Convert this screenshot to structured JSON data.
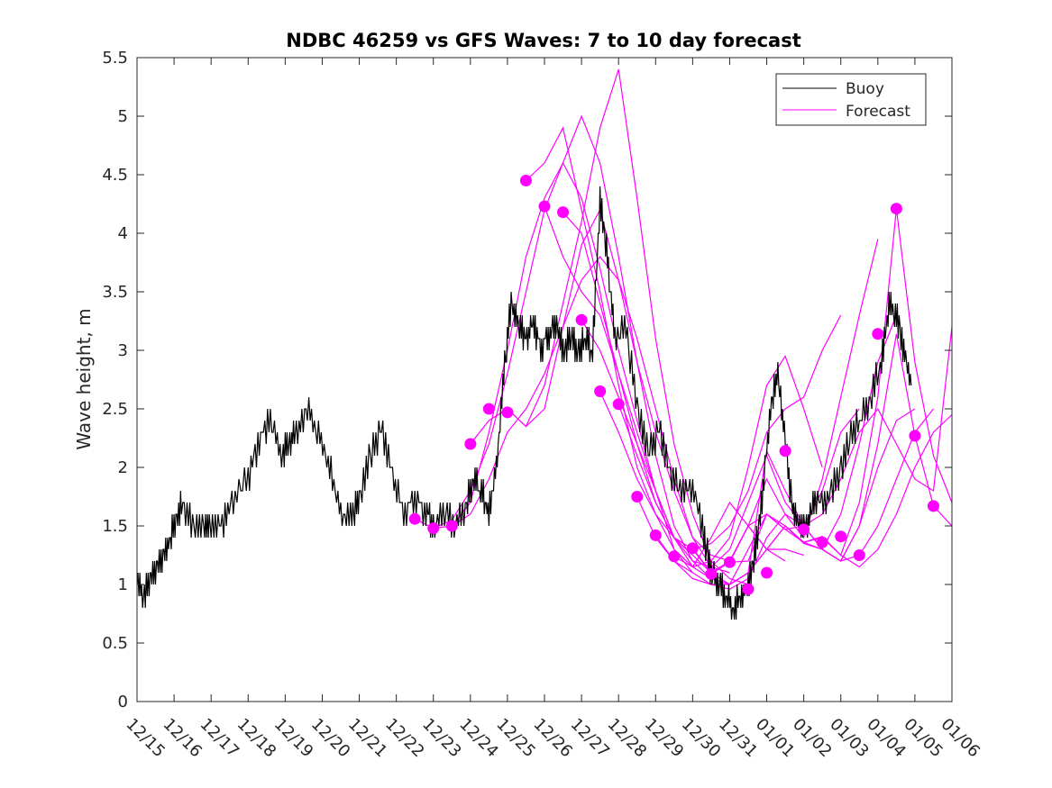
{
  "chart_data": {
    "type": "line",
    "title": "NDBC 46259 vs GFS Waves: 7 to 10 day forecast",
    "xlabel": "",
    "ylabel": "Wave height, m",
    "x_start": "12/15",
    "x_tick_labels": [
      "12/15",
      "12/16",
      "12/17",
      "12/18",
      "12/19",
      "12/20",
      "12/21",
      "12/22",
      "12/23",
      "12/24",
      "12/25",
      "12/26",
      "12/27",
      "12/28",
      "12/29",
      "12/30",
      "12/31",
      "01/01",
      "01/02",
      "01/03",
      "01/04",
      "01/05",
      "01/06"
    ],
    "x_unit": "days since 12/15",
    "xlim": [
      0,
      22
    ],
    "ylim": [
      0,
      5.5
    ],
    "y_ticks": [
      0,
      0.5,
      1,
      1.5,
      2,
      2.5,
      3,
      3.5,
      4,
      4.5,
      5,
      5.5
    ],
    "y_tick_labels": [
      "0",
      "0.5",
      "1",
      "1.5",
      "2",
      "2.5",
      "3",
      "3.5",
      "4",
      "4.5",
      "5",
      "5.5"
    ],
    "legend": {
      "position": "top-right",
      "entries": [
        {
          "name": "Buoy",
          "color": "#000000"
        },
        {
          "name": "Forecast",
          "color": "#ff00ff"
        }
      ]
    },
    "colors": {
      "buoy": "#000000",
      "forecast": "#ff00ff",
      "axis": "#262626"
    },
    "series": [
      {
        "name": "Buoy",
        "x": [
          0,
          0.2,
          0.4,
          0.6,
          0.8,
          1,
          1.2,
          1.5,
          1.8,
          2,
          2.3,
          2.6,
          3,
          3.3,
          3.6,
          3.9,
          4.1,
          4.3,
          4.6,
          4.9,
          5.2,
          5.5,
          5.8,
          6,
          6.3,
          6.6,
          6.9,
          7.2,
          7.5,
          7.8,
          8,
          8.3,
          8.6,
          8.9,
          9.1,
          9.3,
          9.5,
          9.7,
          9.9,
          10.1,
          10.3,
          10.5,
          10.7,
          10.9,
          11.1,
          11.3,
          11.5,
          11.7,
          11.9,
          12.1,
          12.3,
          12.5,
          12.7,
          12.9,
          13.2,
          13.5,
          13.8,
          14.1,
          14.4,
          14.7,
          15,
          15.3,
          15.5,
          15.7,
          15.9,
          16.1,
          16.3,
          16.5,
          16.7,
          16.9,
          17.1,
          17.3,
          17.5,
          17.7,
          17.9,
          18.1,
          18.3,
          18.6,
          18.9,
          19.2,
          19.5,
          19.8,
          20.1,
          20.3,
          20.5,
          20.7,
          20.9,
          21.1,
          21.3
        ],
        "y": [
          1,
          0.9,
          1.1,
          1.2,
          1.3,
          1.5,
          1.7,
          1.5,
          1.5,
          1.5,
          1.5,
          1.7,
          1.9,
          2.2,
          2.4,
          2.1,
          2.2,
          2.3,
          2.5,
          2.3,
          2.0,
          1.6,
          1.6,
          1.7,
          2.1,
          2.3,
          1.9,
          1.6,
          1.7,
          1.6,
          1.5,
          1.6,
          1.5,
          1.7,
          1.9,
          1.8,
          1.6,
          2.0,
          2.8,
          3.4,
          3.2,
          3.1,
          3.2,
          3.0,
          3.1,
          3.2,
          3.0,
          3.1,
          3.0,
          3.1,
          3.0,
          4.3,
          3.8,
          3.1,
          3.2,
          2.5,
          2.1,
          2.3,
          1.9,
          1.8,
          1.8,
          1.4,
          1.1,
          1.0,
          0.9,
          0.8,
          0.9,
          1.0,
          1.3,
          1.8,
          2.5,
          2.8,
          2.2,
          1.6,
          1.5,
          1.5,
          1.7,
          1.7,
          1.9,
          2.2,
          2.4,
          2.6,
          2.9,
          3.4,
          3.3,
          3.0,
          2.7,
          null,
          null
        ]
      },
      {
        "name": "Forecast 1",
        "x": [
          7.5,
          8,
          8.5,
          9,
          9.5,
          10,
          10.5,
          11,
          11.5,
          12,
          12.5,
          13,
          13.5,
          14,
          14.5,
          15
        ],
        "y": [
          1.56,
          1.48,
          1.5,
          1.7,
          2.3,
          3.0,
          3.8,
          4.3,
          4.6,
          4.3,
          3.7,
          3.0,
          2.4,
          1.8,
          1.3,
          1.1
        ]
      },
      {
        "name": "Forecast 2",
        "x": [
          8,
          8.5,
          9,
          9.5,
          10,
          10.5,
          11,
          11.5,
          12,
          12.5,
          13,
          13.5,
          14,
          14.5,
          15,
          15.5
        ],
        "y": [
          1.48,
          1.55,
          1.8,
          2.2,
          2.8,
          3.5,
          4.2,
          4.6,
          5.0,
          4.6,
          3.8,
          2.9,
          2.1,
          1.5,
          1.2,
          1.05
        ]
      },
      {
        "name": "Forecast 3",
        "x": [
          8.5,
          9,
          9.5,
          10,
          10.5,
          11,
          11.5,
          12,
          12.5,
          13,
          13.5,
          14,
          14.5,
          15,
          15.5,
          16
        ],
        "y": [
          1.5,
          1.6,
          1.9,
          2.3,
          2.5,
          2.8,
          3.2,
          3.6,
          3.8,
          3.6,
          3.1,
          2.5,
          1.9,
          1.4,
          1.15,
          1.1
        ]
      },
      {
        "name": "Forecast 4",
        "x": [
          9,
          9.5,
          10,
          10.5,
          11,
          11.5,
          12,
          12.5,
          13,
          13.5,
          14,
          14.5,
          15,
          15.5,
          16,
          16.5
        ],
        "y": [
          2.2,
          2.4,
          2.5,
          2.35,
          2.7,
          3.4,
          4.1,
          4.9,
          5.4,
          4.3,
          3.1,
          2.2,
          1.6,
          1.2,
          1.05,
          1.0
        ]
      },
      {
        "name": "Forecast 5",
        "x": [
          10,
          10.5,
          11,
          11.5,
          12,
          12.5,
          13,
          13.5,
          14,
          14.5,
          15,
          15.5,
          16,
          16.5,
          17,
          17.5
        ],
        "y": [
          2.5,
          2.35,
          2.5,
          3.2,
          3.9,
          4.2,
          3.6,
          2.9,
          2.3,
          1.8,
          1.4,
          1.25,
          1.2,
          1.5,
          1.3,
          1.2
        ]
      },
      {
        "name": "Forecast 6",
        "x": [
          10.5,
          11,
          11.5,
          12,
          12.5,
          13,
          13.5,
          14,
          14.5,
          15,
          15.5,
          16,
          16.5,
          17,
          17.5,
          18
        ],
        "y": [
          4.45,
          4.6,
          4.9,
          4.2,
          3.5,
          2.7,
          2.0,
          1.6,
          1.3,
          1.15,
          1.4,
          1.7,
          1.5,
          1.3,
          1.3,
          1.25
        ]
      },
      {
        "name": "Forecast 7",
        "x": [
          11,
          11.5,
          12,
          12.5,
          13,
          13.5,
          14,
          14.5,
          15,
          15.5,
          16,
          16.5,
          17,
          17.5,
          18,
          18.5
        ],
        "y": [
          4.23,
          3.8,
          3.5,
          3.3,
          2.8,
          2.2,
          1.7,
          1.4,
          1.15,
          1.2,
          1.4,
          2.0,
          2.7,
          2.95,
          2.5,
          2.0
        ]
      },
      {
        "name": "Forecast 8",
        "x": [
          11.5,
          12,
          12.5,
          13,
          13.5,
          14,
          14.5,
          15,
          15.5,
          16,
          16.5,
          17,
          17.5,
          18,
          18.5,
          19
        ],
        "y": [
          4.18,
          4.0,
          3.4,
          2.8,
          2.3,
          1.8,
          1.4,
          1.3,
          1.35,
          1.5,
          1.8,
          2.3,
          2.5,
          2.6,
          3.0,
          3.3
        ]
      },
      {
        "name": "Forecast 9",
        "x": [
          12,
          12.5,
          13,
          13.5,
          14,
          14.5,
          15,
          15.5,
          16,
          16.5,
          17,
          17.5,
          18,
          18.5,
          19,
          19.5
        ],
        "y": [
          3.26,
          3.0,
          2.6,
          2.2,
          1.8,
          1.4,
          1.2,
          1.15,
          1.3,
          1.7,
          2.1,
          1.7,
          1.5,
          1.8,
          2.3,
          2.5
        ]
      },
      {
        "name": "Forecast 10",
        "x": [
          12.5,
          13,
          13.5,
          14,
          14.5,
          15,
          15.5,
          16,
          16.5,
          17,
          17.5,
          18,
          18.5,
          19,
          19.5,
          20
        ],
        "y": [
          2.65,
          2.3,
          1.9,
          1.6,
          1.4,
          1.3,
          1.1,
          1.2,
          1.5,
          1.9,
          1.6,
          1.4,
          1.9,
          2.6,
          3.3,
          3.95
        ]
      },
      {
        "name": "Forecast 11",
        "x": [
          13,
          13.5,
          14,
          14.5,
          15,
          15.5,
          16,
          16.5,
          17,
          17.5,
          18,
          18.5,
          19,
          19.5,
          20,
          20.5
        ],
        "y": [
          2.54,
          2.1,
          1.7,
          1.4,
          1.25,
          1.1,
          1.0,
          1.1,
          1.3,
          1.5,
          1.35,
          1.3,
          1.6,
          2.2,
          2.9,
          3.3
        ]
      },
      {
        "name": "Forecast 12",
        "x": [
          13.5,
          14,
          14.5,
          15,
          15.5,
          16,
          16.5,
          17,
          17.5,
          18,
          18.5,
          19,
          19.5,
          20,
          20.5,
          21
        ],
        "y": [
          1.75,
          1.4,
          1.2,
          1.1,
          1.0,
          0.96,
          1.05,
          1.4,
          1.6,
          1.5,
          1.3,
          1.2,
          1.5,
          2.0,
          2.4,
          2.5
        ]
      },
      {
        "name": "Forecast 13",
        "x": [
          14,
          14.5,
          15,
          15.5,
          16,
          16.5,
          17,
          17.5,
          18,
          18.5,
          19,
          19.5,
          20,
          20.5,
          21,
          21.5
        ],
        "y": [
          1.42,
          1.2,
          1.05,
          1.0,
          1.0,
          1.1,
          1.3,
          1.5,
          1.36,
          1.3,
          1.2,
          1.25,
          1.5,
          1.9,
          2.3,
          2.5
        ]
      },
      {
        "name": "Forecast 14",
        "x": [
          14.5,
          15,
          15.5,
          16,
          16.5,
          17,
          17.5,
          18,
          18.5,
          19,
          19.5,
          20,
          20.5,
          21,
          21.5,
          22
        ],
        "y": [
          1.24,
          1.15,
          1.05,
          1.0,
          1.3,
          1.6,
          1.5,
          1.36,
          1.4,
          1.25,
          1.15,
          1.3,
          1.6,
          2.0,
          2.3,
          2.45
        ]
      },
      {
        "name": "Forecast 15",
        "x": [
          15,
          15.5,
          16,
          16.5,
          17,
          17.5,
          18,
          18.5,
          19,
          19.5,
          20,
          20.5,
          21,
          21.5,
          22
        ],
        "y": [
          1.31,
          1.1,
          1.0,
          1.1,
          2.14,
          1.8,
          1.5,
          1.3,
          1.2,
          1.5,
          2.2,
          3.14,
          2.27,
          1.67,
          1.5
        ]
      },
      {
        "name": "Forecast 16",
        "x": [
          15.5,
          16,
          16.5,
          17,
          17.5,
          18,
          18.5,
          19,
          19.5,
          20,
          20.5,
          21,
          21.5,
          22
        ],
        "y": [
          1.09,
          1.19,
          1.2,
          1.6,
          1.47,
          1.36,
          1.41,
          1.25,
          1.7,
          2.6,
          4.21,
          2.9,
          2.1,
          1.7
        ]
      },
      {
        "name": "Forecast 17",
        "x": [
          16,
          16.5,
          17,
          17.5,
          18,
          18.5,
          19,
          19.5,
          20,
          20.5,
          21,
          21.5,
          22
        ],
        "y": [
          1.19,
          1.5,
          1.6,
          1.47,
          1.5,
          1.6,
          1.9,
          2.3,
          2.5,
          2.2,
          1.9,
          1.8,
          3.2
        ]
      }
    ],
    "forecast_markers": {
      "x": [
        7.5,
        8,
        8.5,
        9,
        9.5,
        10,
        10.5,
        11,
        11.5,
        12,
        12.5,
        13,
        13.5,
        14,
        14.5,
        15,
        15.5,
        16,
        16.5,
        17,
        17.5,
        18,
        18.5,
        19,
        19.5,
        20,
        20.5,
        21,
        21.5
      ],
      "y": [
        1.56,
        1.48,
        1.5,
        2.2,
        2.5,
        2.47,
        4.45,
        4.23,
        4.18,
        3.26,
        2.65,
        2.54,
        1.75,
        1.42,
        1.24,
        1.31,
        1.09,
        1.19,
        0.96,
        1.1,
        2.14,
        1.47,
        1.36,
        1.41,
        1.25,
        3.14,
        4.21,
        2.27,
        1.67
      ]
    }
  }
}
